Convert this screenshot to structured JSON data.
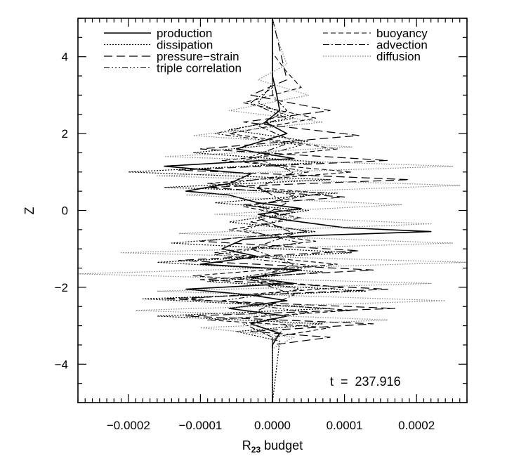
{
  "chart_data": {
    "type": "line",
    "title": "",
    "xlabel": "R",
    "xlabel_sub": "23",
    "xlabel_suffix": "budget",
    "ylabel": "Z",
    "xlim": [
      -0.00027,
      0.00027
    ],
    "ylim": [
      -5,
      5
    ],
    "x_ticks": [
      -0.0002,
      -0.0001,
      0.0,
      0.0001,
      0.0002
    ],
    "x_tick_labels": [
      "−0.0002",
      "−0.0001",
      "0.0000",
      "0.0001",
      "0.0002"
    ],
    "y_ticks": [
      -4,
      -2,
      0,
      2,
      4
    ],
    "y_tick_labels": [
      "−4",
      "−2",
      "0",
      "2",
      "4"
    ],
    "grid": false,
    "legend_left": [
      "production",
      "dissipation",
      "pressure−strain",
      "triple correlation"
    ],
    "legend_right": [
      "buoyancy",
      "advection",
      "diffusion"
    ],
    "annotation": "t  =  237.916",
    "series": [
      {
        "name": "production",
        "dash": "",
        "color": "#000000",
        "width": 1.6,
        "points": [
          [
            0.0,
            5.0
          ],
          [
            0.0,
            3.5
          ],
          [
            5e-06,
            3.1
          ],
          [
            1e-05,
            2.6
          ],
          [
            -1e-05,
            2.3
          ],
          [
            2e-05,
            2.0
          ],
          [
            -5e-05,
            1.6
          ],
          [
            3e-05,
            1.35
          ],
          [
            -0.00015,
            1.15
          ],
          [
            -3e-05,
            0.95
          ],
          [
            -6e-05,
            0.7
          ],
          [
            -0.00012,
            0.5
          ],
          [
            -6e-05,
            0.4
          ],
          [
            -2e-05,
            0.2
          ],
          [
            4e-05,
            0.05
          ],
          [
            -2e-05,
            -0.1
          ],
          [
            2e-05,
            -0.25
          ],
          [
            0.0001,
            -0.45
          ],
          [
            0.00022,
            -0.55
          ],
          [
            6e-05,
            -0.65
          ],
          [
            -4e-05,
            -0.75
          ],
          [
            -7e-05,
            -1.0
          ],
          [
            -2e-05,
            -1.2
          ],
          [
            -0.0001,
            -1.4
          ],
          [
            4e-05,
            -1.55
          ],
          [
            -3e-05,
            -1.75
          ],
          [
            3e-05,
            -1.9
          ],
          [
            -0.00012,
            -2.05
          ],
          [
            -3e-05,
            -2.2
          ],
          [
            2e-05,
            -2.35
          ],
          [
            -6e-05,
            -2.55
          ],
          [
            2e-05,
            -2.75
          ],
          [
            -3e-05,
            -2.95
          ],
          [
            1e-05,
            -3.2
          ],
          [
            0.0,
            -3.5
          ],
          [
            0.0,
            -5.0
          ]
        ]
      },
      {
        "name": "dissipation",
        "dash": "2 2",
        "color": "#000000",
        "width": 1.2,
        "points": [
          [
            0.0,
            5.0
          ],
          [
            0.0,
            3.3
          ],
          [
            -2e-05,
            2.8
          ],
          [
            3e-05,
            2.4
          ],
          [
            -6e-05,
            2.1
          ],
          [
            5e-05,
            1.8
          ],
          [
            -0.00011,
            1.5
          ],
          [
            7e-05,
            1.25
          ],
          [
            -0.0002,
            1.0
          ],
          [
            8e-05,
            0.8
          ],
          [
            -0.00015,
            0.6
          ],
          [
            9e-05,
            0.45
          ],
          [
            -8e-05,
            0.2
          ],
          [
            5e-05,
            0.0
          ],
          [
            -6e-05,
            -0.3
          ],
          [
            6e-05,
            -0.55
          ],
          [
            -0.00014,
            -0.85
          ],
          [
            0.00011,
            -1.1
          ],
          [
            -0.00016,
            -1.35
          ],
          [
            7e-05,
            -1.6
          ],
          [
            -9e-05,
            -1.85
          ],
          [
            0.00013,
            -2.1
          ],
          [
            -0.00018,
            -2.3
          ],
          [
            8e-05,
            -2.55
          ],
          [
            -0.00016,
            -2.75
          ],
          [
            7e-05,
            -2.95
          ],
          [
            -5e-05,
            -3.15
          ],
          [
            1e-05,
            -3.4
          ],
          [
            0.0,
            -5.0
          ]
        ]
      },
      {
        "name": "pressure−strain",
        "dash": "12 6",
        "color": "#000000",
        "width": 1.2,
        "points": [
          [
            0.0,
            5.0
          ],
          [
            2e-05,
            3.4
          ],
          [
            -3e-05,
            3.0
          ],
          [
            8e-05,
            2.6
          ],
          [
            -4e-05,
            2.3
          ],
          [
            0.00012,
            1.95
          ],
          [
            -0.0001,
            1.6
          ],
          [
            0.00016,
            1.3
          ],
          [
            -0.00013,
            1.05
          ],
          [
            0.00019,
            0.8
          ],
          [
            -9e-05,
            0.6
          ],
          [
            0.0001,
            0.35
          ],
          [
            -4e-05,
            0.15
          ],
          [
            3e-05,
            -0.05
          ],
          [
            -3e-05,
            -0.3
          ],
          [
            5e-05,
            -0.55
          ],
          [
            -0.0001,
            -0.8
          ],
          [
            0.00012,
            -1.05
          ],
          [
            -0.00013,
            -1.3
          ],
          [
            0.00014,
            -1.55
          ],
          [
            -0.0001,
            -1.8
          ],
          [
            0.00016,
            -2.05
          ],
          [
            -0.00015,
            -2.3
          ],
          [
            0.00017,
            -2.55
          ],
          [
            -0.00012,
            -2.75
          ],
          [
            0.00014,
            -2.95
          ],
          [
            -3e-05,
            -3.15
          ],
          [
            8e-05,
            -3.3
          ],
          [
            0.0,
            -3.5
          ],
          [
            0.0,
            -5.0
          ]
        ]
      },
      {
        "name": "triple correlation",
        "dash": "8 3 2 3 2 3 2 3",
        "color": "#000000",
        "width": 1.1,
        "points": [
          [
            0.0,
            5.0
          ],
          [
            0.0,
            3.2
          ],
          [
            -3e-05,
            2.8
          ],
          [
            2e-05,
            2.4
          ],
          [
            -8e-05,
            2.0
          ],
          [
            4e-05,
            1.7
          ],
          [
            -4e-05,
            1.3
          ],
          [
            5e-05,
            1.0
          ],
          [
            -6e-05,
            0.7
          ],
          [
            3e-05,
            0.4
          ],
          [
            -2e-05,
            0.1
          ],
          [
            2e-05,
            -0.2
          ],
          [
            -4e-05,
            -0.5
          ],
          [
            4e-05,
            -0.85
          ],
          [
            -8e-05,
            -1.15
          ],
          [
            6e-05,
            -1.45
          ],
          [
            -5e-05,
            -1.75
          ],
          [
            4e-05,
            -2.05
          ],
          [
            -7e-05,
            -2.35
          ],
          [
            5e-05,
            -2.65
          ],
          [
            -4e-05,
            -2.95
          ],
          [
            0.0,
            -3.3
          ],
          [
            0.0,
            -5.0
          ]
        ]
      },
      {
        "name": "buoyancy",
        "dash": "7 4",
        "color": "#000000",
        "width": 1.1,
        "points": [
          [
            0.0,
            5.0
          ],
          [
            0.0,
            4.1
          ],
          [
            2e-05,
            3.6
          ],
          [
            4e-05,
            3.2
          ],
          [
            -4e-05,
            2.8
          ],
          [
            6e-05,
            2.4
          ],
          [
            -6e-05,
            2.0
          ],
          [
            9e-05,
            1.6
          ],
          [
            -7e-05,
            1.3
          ],
          [
            0.00011,
            1.0
          ],
          [
            -9e-05,
            0.7
          ],
          [
            7e-05,
            0.45
          ],
          [
            -4e-05,
            0.1
          ],
          [
            4e-05,
            -0.2
          ],
          [
            -6e-05,
            -0.5
          ],
          [
            6e-05,
            -0.8
          ],
          [
            -8e-05,
            -1.1
          ],
          [
            9e-05,
            -1.4
          ],
          [
            -0.00011,
            -1.7
          ],
          [
            0.0001,
            -2.0
          ],
          [
            -0.00012,
            -2.3
          ],
          [
            0.00011,
            -2.6
          ],
          [
            -9e-05,
            -2.85
          ],
          [
            8e-05,
            -3.05
          ],
          [
            0.0,
            -3.3
          ],
          [
            0.0,
            -5.0
          ]
        ]
      },
      {
        "name": "advection",
        "dash": "9 3 2 3",
        "color": "#000000",
        "width": 1.1,
        "points": [
          [
            0.0,
            5.0
          ],
          [
            0.0,
            3.0
          ],
          [
            2e-05,
            2.6
          ],
          [
            -2e-05,
            2.2
          ],
          [
            3e-05,
            1.8
          ],
          [
            -3e-05,
            1.4
          ],
          [
            3e-05,
            1.0
          ],
          [
            -2e-05,
            0.6
          ],
          [
            2e-05,
            0.2
          ],
          [
            -2e-05,
            -0.2
          ],
          [
            3e-05,
            -0.6
          ],
          [
            -3e-05,
            -1.0
          ],
          [
            3e-05,
            -1.4
          ],
          [
            -3e-05,
            -1.8
          ],
          [
            3e-05,
            -2.2
          ],
          [
            -2e-05,
            -2.6
          ],
          [
            2e-05,
            -3.0
          ],
          [
            0.0,
            -3.4
          ],
          [
            0.0,
            -5.0
          ]
        ]
      },
      {
        "name": "diffusion",
        "dash": "1.5 2",
        "color": "#808080",
        "width": 1.2,
        "points": [
          [
            0.0,
            5.0
          ],
          [
            1e-05,
            4.3
          ],
          [
            2e-05,
            3.8
          ],
          [
            -2e-05,
            3.4
          ],
          [
            5e-05,
            3.0
          ],
          [
            -6e-05,
            2.6
          ],
          [
            7e-05,
            2.3
          ],
          [
            -0.00011,
            1.95
          ],
          [
            0.00011,
            1.65
          ],
          [
            -0.00015,
            1.4
          ],
          [
            0.00025,
            1.15
          ],
          [
            -0.00016,
            0.9
          ],
          [
            0.00026,
            0.65
          ],
          [
            -0.00012,
            0.4
          ],
          [
            0.00018,
            0.15
          ],
          [
            -8e-05,
            -0.1
          ],
          [
            0.00022,
            -0.35
          ],
          [
            -0.00013,
            -0.6
          ],
          [
            0.00025,
            -0.85
          ],
          [
            -0.00021,
            -1.1
          ],
          [
            0.00027,
            -1.35
          ],
          [
            -0.00027,
            -1.65
          ],
          [
            0.00022,
            -1.9
          ],
          [
            -0.00016,
            -2.1
          ],
          [
            0.00024,
            -2.35
          ],
          [
            -0.00019,
            -2.6
          ],
          [
            0.00016,
            -2.85
          ],
          [
            -0.0001,
            -3.05
          ],
          [
            3e-05,
            -3.3
          ],
          [
            0.0,
            -3.6
          ],
          [
            0.0,
            -5.0
          ]
        ]
      }
    ]
  }
}
